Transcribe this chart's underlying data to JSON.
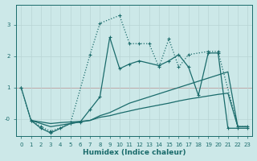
{
  "xlabel": "Humidex (Indice chaleur)",
  "background_color": "#cce8e8",
  "line_color": "#1a6b6b",
  "grid_color": "#b8d4d4",
  "red_line_color": "#cc4444",
  "xlim": [
    -0.5,
    23.5
  ],
  "ylim": [
    -0.55,
    3.65
  ],
  "xticks": [
    0,
    1,
    2,
    3,
    4,
    5,
    6,
    7,
    8,
    9,
    10,
    11,
    12,
    13,
    14,
    15,
    16,
    17,
    18,
    19,
    20,
    21,
    22,
    23
  ],
  "yticks": [
    0,
    1,
    2,
    3
  ],
  "ytick_labels": [
    "-0",
    "1",
    "2",
    "3"
  ],
  "line1_x": [
    0,
    1,
    2,
    3,
    5,
    7,
    8,
    10,
    11,
    12,
    13,
    14,
    15,
    16,
    17,
    19,
    20,
    22,
    23
  ],
  "line1_y": [
    1.0,
    -0.05,
    -0.25,
    -0.4,
    -0.15,
    2.05,
    3.05,
    3.3,
    2.4,
    2.4,
    2.4,
    1.65,
    2.55,
    1.65,
    2.05,
    2.15,
    2.15,
    -0.25,
    -0.25
  ],
  "line2_x": [
    0,
    1,
    2,
    3,
    4,
    5,
    6,
    7,
    8,
    9,
    10,
    11,
    12,
    14,
    15,
    16,
    17,
    18,
    19,
    20,
    21,
    22,
    23
  ],
  "line2_y": [
    1.0,
    -0.05,
    -0.3,
    -0.45,
    -0.3,
    -0.15,
    -0.1,
    0.3,
    0.7,
    2.6,
    1.6,
    1.75,
    1.85,
    1.7,
    1.85,
    2.05,
    1.65,
    0.75,
    2.1,
    2.1,
    -0.3,
    -0.3,
    -0.3
  ],
  "line3_x": [
    1,
    2,
    3,
    4,
    5,
    6,
    7,
    8,
    9,
    10,
    11,
    12,
    13,
    14,
    15,
    16,
    17,
    18,
    19,
    20,
    21,
    22,
    23
  ],
  "line3_y": [
    -0.05,
    -0.15,
    -0.25,
    -0.2,
    -0.15,
    -0.1,
    -0.05,
    0.1,
    0.2,
    0.35,
    0.5,
    0.6,
    0.7,
    0.8,
    0.9,
    1.0,
    1.1,
    1.2,
    1.3,
    1.4,
    1.5,
    -0.25,
    -0.25
  ],
  "line4_x": [
    1,
    2,
    3,
    4,
    5,
    6,
    7,
    8,
    9,
    10,
    11,
    12,
    13,
    14,
    15,
    16,
    17,
    18,
    19,
    20,
    21,
    22,
    23
  ],
  "line4_y": [
    -0.05,
    -0.1,
    -0.15,
    -0.12,
    -0.1,
    -0.08,
    -0.05,
    0.05,
    0.1,
    0.18,
    0.25,
    0.32,
    0.38,
    0.44,
    0.5,
    0.57,
    0.63,
    0.68,
    0.73,
    0.78,
    0.82,
    -0.25,
    -0.25
  ]
}
